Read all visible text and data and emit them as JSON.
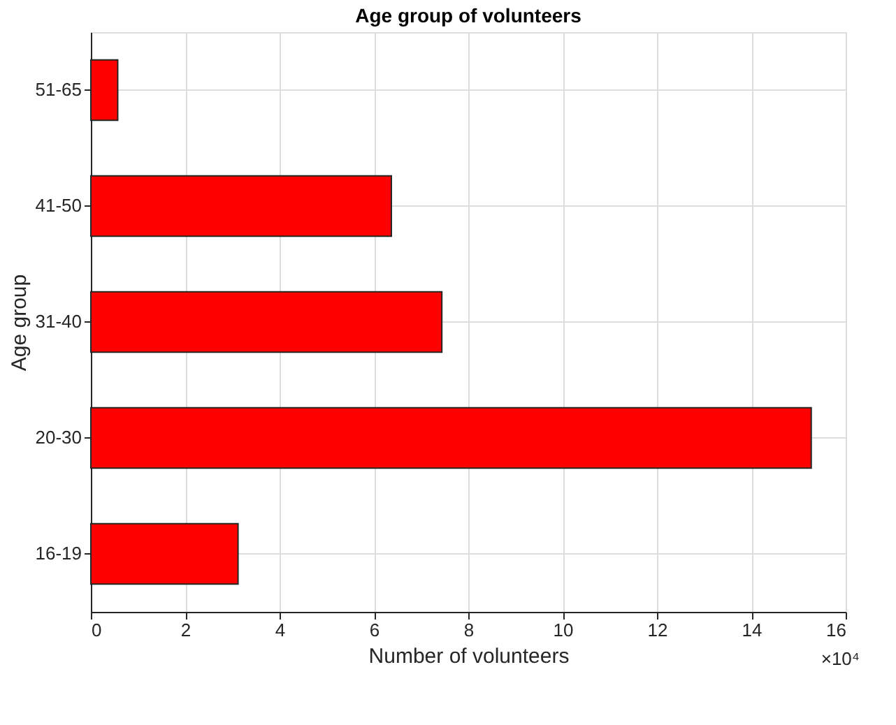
{
  "chart_data": {
    "type": "bar",
    "orientation": "horizontal",
    "title": "Age group of volunteers",
    "xlabel": "Number of volunteers",
    "ylabel": "Age group",
    "categories": [
      "51-65",
      "41-50",
      "31-40",
      "20-30",
      "16-19"
    ],
    "series": [
      {
        "color": "#ff0000",
        "values": [
          0.57,
          6.37,
          7.44,
          15.27,
          3.12
        ]
      }
    ],
    "xlim": [
      0,
      16
    ],
    "xticks": [
      0,
      2,
      4,
      6,
      8,
      10,
      12,
      14,
      16
    ],
    "grid": true,
    "annotations": [
      "×10⁴"
    ]
  }
}
